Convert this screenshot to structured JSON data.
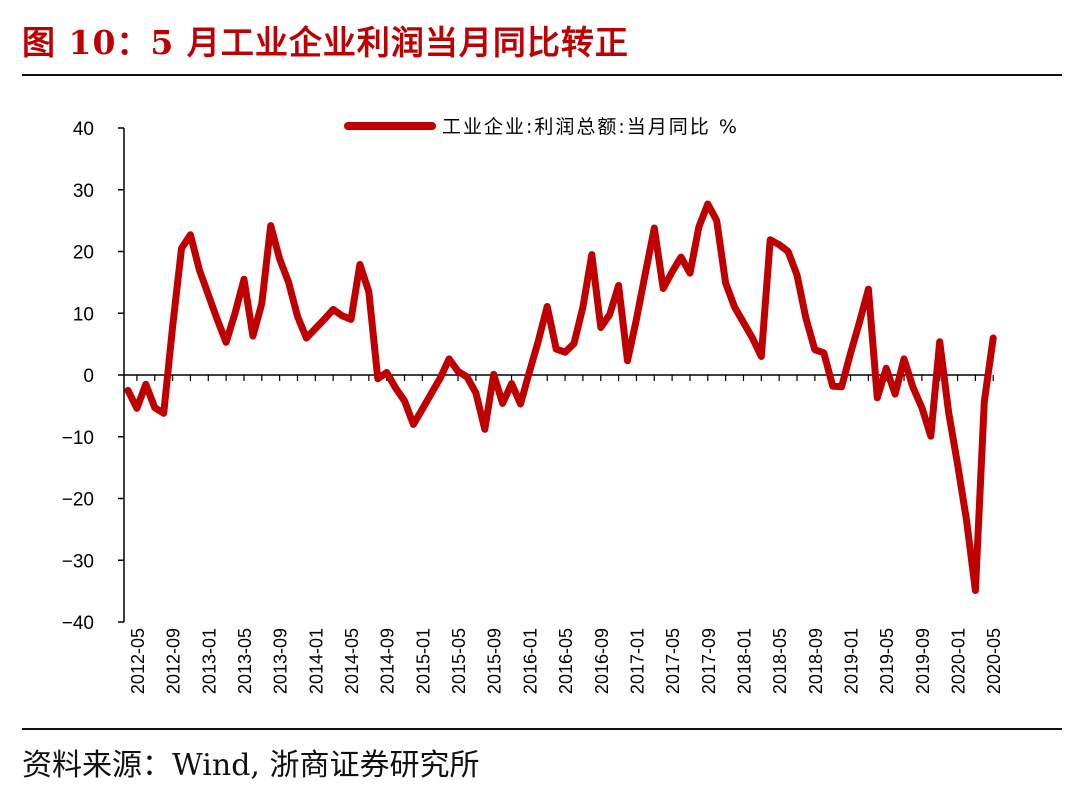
{
  "figure": {
    "title": "图 10：5 月工业企业利润当月同比转正",
    "source": "资料来源：Wind, 浙商证券研究所"
  },
  "chart_data": {
    "type": "line",
    "title": "",
    "xlabel": "",
    "ylabel": "",
    "ylim": [
      -40,
      40
    ],
    "yticks": [
      -40,
      -30,
      -20,
      -10,
      0,
      10,
      20,
      30,
      40
    ],
    "grid": false,
    "legend_position": "top-center",
    "x_tick_labels": [
      "2012-05",
      "2012-09",
      "2013-01",
      "2013-05",
      "2013-09",
      "2014-01",
      "2014-05",
      "2014-09",
      "2015-01",
      "2015-05",
      "2015-09",
      "2016-01",
      "2016-05",
      "2016-09",
      "2017-01",
      "2017-05",
      "2017-09",
      "2018-01",
      "2018-05",
      "2018-09",
      "2019-01",
      "2019-05",
      "2019-09",
      "2020-01",
      "2020-05"
    ],
    "x": [
      "2012-04",
      "2012-05",
      "2012-06",
      "2012-07",
      "2012-08",
      "2012-09",
      "2012-10",
      "2012-11",
      "2012-12",
      "2013-01",
      "2013-02",
      "2013-03",
      "2013-04",
      "2013-05",
      "2013-06",
      "2013-07",
      "2013-08",
      "2013-09",
      "2013-10",
      "2013-11",
      "2013-12",
      "2014-01",
      "2014-02",
      "2014-03",
      "2014-04",
      "2014-05",
      "2014-06",
      "2014-07",
      "2014-08",
      "2014-09",
      "2014-10",
      "2014-11",
      "2014-12",
      "2015-01",
      "2015-02",
      "2015-03",
      "2015-04",
      "2015-05",
      "2015-06",
      "2015-07",
      "2015-08",
      "2015-09",
      "2015-10",
      "2015-11",
      "2015-12",
      "2016-01",
      "2016-02",
      "2016-03",
      "2016-04",
      "2016-05",
      "2016-06",
      "2016-07",
      "2016-08",
      "2016-09",
      "2016-10",
      "2016-11",
      "2016-12",
      "2017-01",
      "2017-02",
      "2017-03",
      "2017-04",
      "2017-05",
      "2017-06",
      "2017-07",
      "2017-08",
      "2017-09",
      "2017-10",
      "2017-11",
      "2017-12",
      "2018-01",
      "2018-02",
      "2018-03",
      "2018-04",
      "2018-05",
      "2018-06",
      "2018-07",
      "2018-08",
      "2018-09",
      "2018-10",
      "2018-11",
      "2018-12",
      "2019-01",
      "2019-02",
      "2019-03",
      "2019-04",
      "2019-05",
      "2019-06",
      "2019-07",
      "2019-08",
      "2019-09",
      "2019-10",
      "2019-11",
      "2019-12",
      "2020-01",
      "2020-02",
      "2020-03",
      "2020-04",
      "2020-05"
    ],
    "series": [
      {
        "name": "工业企业:利润总额:当月同比 %",
        "color": "#c00000",
        "values": [
          -2.5,
          -5.4,
          -1.5,
          -5.3,
          -6.2,
          7.8,
          20.5,
          22.7,
          17.0,
          13.0,
          9.0,
          5.3,
          10.0,
          15.5,
          6.3,
          11.6,
          24.2,
          18.8,
          15.0,
          9.5,
          6.0,
          7.5,
          9.0,
          10.6,
          9.6,
          9.0,
          17.9,
          13.5,
          -0.6,
          0.4,
          -2.1,
          -4.2,
          -8.0,
          -5.5,
          -3.0,
          -0.5,
          2.6,
          0.6,
          -0.3,
          -2.9,
          -8.8,
          0.1,
          -4.6,
          -1.4,
          -4.7,
          0.5,
          5.5,
          11.1,
          4.2,
          3.7,
          5.1,
          11.0,
          19.5,
          7.7,
          9.8,
          14.5,
          2.3,
          9.0,
          16.5,
          23.8,
          14.0,
          16.7,
          19.1,
          16.5,
          24.0,
          27.7,
          25.0,
          14.9,
          11.0,
          8.5,
          6.0,
          3.0,
          21.9,
          21.1,
          20.0,
          16.2,
          9.2,
          4.1,
          3.6,
          -1.8,
          -1.9,
          3.5,
          8.5,
          13.9,
          -3.7,
          1.1,
          -3.1,
          2.6,
          -2.0,
          -5.3,
          -9.9,
          5.4,
          -6.0,
          -14.5,
          -23.5,
          -34.9,
          -4.3,
          6.0
        ]
      }
    ]
  }
}
